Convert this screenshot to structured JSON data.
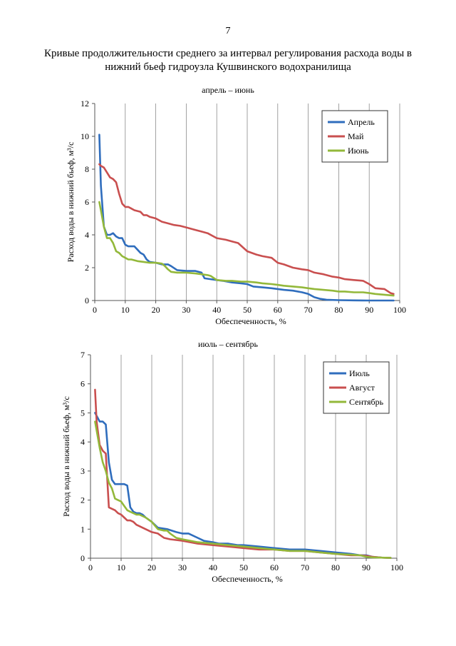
{
  "page_number": "7",
  "document_title": "Кривые продолжительности среднего за интервал регулирования расхода воды в нижний бьеф гидроузла Кушвинского водохранилища",
  "chart_data": [
    {
      "type": "line",
      "title": "апрель – июнь",
      "xlabel": "Обеспеченность, %",
      "ylabel": "Расход воды в нижний бьеф, м³/с",
      "xlim": [
        0,
        100
      ],
      "ylim": [
        0,
        12
      ],
      "xticks": [
        0,
        10,
        20,
        30,
        40,
        50,
        60,
        70,
        80,
        90,
        100
      ],
      "yticks": [
        0,
        2,
        4,
        6,
        8,
        10,
        12
      ],
      "grid": "vertical",
      "legend": "top-right",
      "series": [
        {
          "name": "Апрель",
          "color": "#2f6dbd",
          "x": [
            1.5,
            2,
            3,
            4,
            5,
            6,
            7,
            8,
            9,
            10,
            11,
            12,
            13,
            14,
            15,
            16,
            17,
            18,
            20,
            22,
            24,
            25,
            27,
            30,
            33,
            35,
            36,
            38,
            40,
            42,
            45,
            48,
            50,
            52,
            55,
            58,
            60,
            62,
            65,
            68,
            70,
            72,
            74,
            76,
            80,
            85,
            90,
            95,
            98
          ],
          "y": [
            10.1,
            7.0,
            4.5,
            4.0,
            4.0,
            4.1,
            3.9,
            3.8,
            3.8,
            3.4,
            3.3,
            3.3,
            3.3,
            3.1,
            2.9,
            2.8,
            2.5,
            2.35,
            2.3,
            2.2,
            2.2,
            2.1,
            1.85,
            1.8,
            1.8,
            1.7,
            1.35,
            1.3,
            1.25,
            1.2,
            1.1,
            1.05,
            1.0,
            0.85,
            0.8,
            0.75,
            0.7,
            0.65,
            0.6,
            0.5,
            0.4,
            0.2,
            0.1,
            0.05,
            0.02,
            0.01,
            0.0,
            0.0,
            0.0
          ]
        },
        {
          "name": "Май",
          "color": "#c94f4f",
          "x": [
            1.5,
            2,
            3,
            4,
            5,
            6,
            7,
            8,
            9,
            10,
            11,
            12,
            13,
            15,
            16,
            17,
            18,
            20,
            22,
            24,
            26,
            28,
            30,
            33,
            35,
            37,
            40,
            43,
            45,
            47,
            50,
            53,
            55,
            58,
            60,
            62,
            65,
            68,
            70,
            72,
            75,
            78,
            80,
            82,
            85,
            88,
            90,
            92,
            95,
            97,
            98
          ],
          "y": [
            8.3,
            8.2,
            8.1,
            7.8,
            7.5,
            7.4,
            7.2,
            6.5,
            5.9,
            5.7,
            5.7,
            5.6,
            5.5,
            5.4,
            5.2,
            5.2,
            5.1,
            5.0,
            4.8,
            4.7,
            4.6,
            4.55,
            4.45,
            4.3,
            4.2,
            4.1,
            3.8,
            3.7,
            3.6,
            3.5,
            3.0,
            2.8,
            2.7,
            2.6,
            2.3,
            2.2,
            2.0,
            1.9,
            1.85,
            1.7,
            1.6,
            1.45,
            1.4,
            1.3,
            1.25,
            1.2,
            1.0,
            0.75,
            0.7,
            0.45,
            0.4
          ]
        },
        {
          "name": "Июнь",
          "color": "#93b83a",
          "x": [
            1.5,
            2,
            3,
            4,
            5,
            6,
            7,
            8,
            9,
            10,
            11,
            12,
            14,
            16,
            18,
            20,
            22,
            23,
            24,
            25,
            27,
            30,
            33,
            35,
            37,
            38,
            40,
            43,
            45,
            48,
            50,
            53,
            55,
            58,
            60,
            62,
            65,
            68,
            70,
            72,
            75,
            78,
            80,
            82,
            85,
            88,
            90,
            92,
            95,
            98
          ],
          "y": [
            6.0,
            5.5,
            4.5,
            3.8,
            3.8,
            3.5,
            3.0,
            2.9,
            2.7,
            2.6,
            2.5,
            2.5,
            2.4,
            2.35,
            2.3,
            2.3,
            2.25,
            2.1,
            1.9,
            1.75,
            1.7,
            1.7,
            1.65,
            1.6,
            1.55,
            1.5,
            1.25,
            1.2,
            1.2,
            1.15,
            1.15,
            1.1,
            1.05,
            1.0,
            0.95,
            0.9,
            0.85,
            0.8,
            0.75,
            0.7,
            0.65,
            0.6,
            0.55,
            0.55,
            0.5,
            0.5,
            0.45,
            0.4,
            0.35,
            0.3
          ]
        }
      ]
    },
    {
      "type": "line",
      "title": "июль – сентябрь",
      "xlabel": "Обеспеченность, %",
      "ylabel": "Расход воды в нижний бьеф, м³/с",
      "xlim": [
        0,
        100
      ],
      "ylim": [
        0,
        7
      ],
      "xticks": [
        0,
        10,
        20,
        30,
        40,
        50,
        60,
        70,
        80,
        90,
        100
      ],
      "yticks": [
        0,
        1,
        2,
        3,
        4,
        5,
        6,
        7
      ],
      "grid": "vertical",
      "legend": "top-right",
      "series": [
        {
          "name": "Июль",
          "color": "#2f6dbd",
          "x": [
            1.5,
            2,
            3,
            4,
            5,
            6,
            7,
            8,
            10,
            11,
            12,
            13,
            14,
            15,
            16,
            17,
            18,
            20,
            22,
            25,
            28,
            30,
            32,
            35,
            37,
            40,
            42,
            45,
            48,
            50,
            55,
            60,
            65,
            70,
            75,
            80,
            85,
            88,
            90,
            92,
            95,
            98
          ],
          "y": [
            5.0,
            4.9,
            4.7,
            4.7,
            4.6,
            3.3,
            2.7,
            2.55,
            2.55,
            2.55,
            2.5,
            1.75,
            1.6,
            1.55,
            1.55,
            1.5,
            1.4,
            1.25,
            1.05,
            1.0,
            0.9,
            0.85,
            0.85,
            0.7,
            0.6,
            0.55,
            0.5,
            0.5,
            0.45,
            0.45,
            0.4,
            0.35,
            0.3,
            0.3,
            0.25,
            0.2,
            0.15,
            0.1,
            0.1,
            0.05,
            0.02,
            0.01
          ]
        },
        {
          "name": "Август",
          "color": "#c94f4f",
          "x": [
            1.5,
            2,
            3,
            4,
            5,
            6,
            7,
            8,
            9,
            10,
            11,
            12,
            13,
            14,
            15,
            16,
            18,
            20,
            22,
            24,
            26,
            30,
            35,
            40,
            45,
            50,
            55,
            60,
            65,
            70,
            75,
            80,
            85,
            88,
            90,
            92,
            95,
            98
          ],
          "y": [
            5.8,
            4.7,
            3.9,
            3.7,
            3.6,
            1.75,
            1.7,
            1.65,
            1.55,
            1.5,
            1.4,
            1.3,
            1.3,
            1.25,
            1.15,
            1.1,
            1.0,
            0.9,
            0.85,
            0.7,
            0.65,
            0.6,
            0.5,
            0.45,
            0.4,
            0.35,
            0.3,
            0.3,
            0.25,
            0.25,
            0.2,
            0.15,
            0.1,
            0.1,
            0.08,
            0.05,
            0.02,
            0.01
          ]
        },
        {
          "name": "Сентябрь",
          "color": "#93b83a",
          "x": [
            1.5,
            2,
            3,
            4,
            5,
            6,
            7,
            8,
            9,
            10,
            11,
            12,
            13,
            14,
            15,
            16,
            18,
            20,
            22,
            24,
            25,
            26,
            28,
            30,
            35,
            40,
            45,
            50,
            55,
            60,
            65,
            70,
            75,
            80,
            85,
            88,
            90,
            92,
            95,
            98
          ],
          "y": [
            4.7,
            4.4,
            3.8,
            3.3,
            3.0,
            2.6,
            2.4,
            2.05,
            2.0,
            1.95,
            1.8,
            1.65,
            1.6,
            1.55,
            1.5,
            1.5,
            1.4,
            1.25,
            1.0,
            0.95,
            0.95,
            0.85,
            0.7,
            0.65,
            0.55,
            0.5,
            0.45,
            0.4,
            0.35,
            0.3,
            0.25,
            0.25,
            0.2,
            0.15,
            0.12,
            0.1,
            0.05,
            0.03,
            0.02,
            0.01
          ]
        }
      ]
    }
  ]
}
